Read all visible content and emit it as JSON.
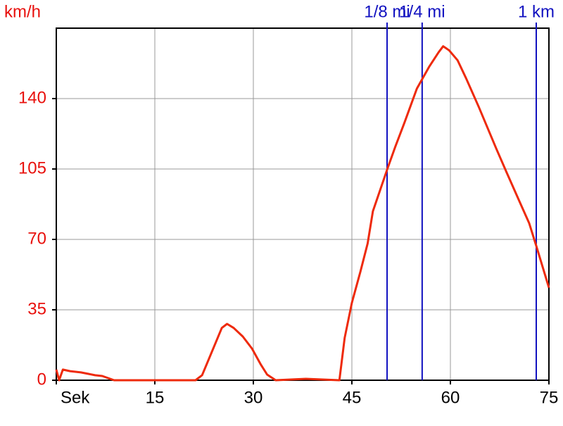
{
  "chart_data": {
    "type": "line",
    "y_label": "km/h",
    "x": [
      0,
      0.43,
      1,
      2.1,
      3.75,
      5.9,
      7,
      8.8,
      21.2,
      22.2,
      25.2,
      26,
      27,
      28.4,
      29.8,
      31.1,
      32.1,
      33.4,
      38,
      43.1,
      43.9,
      45,
      46.3,
      47.4,
      48.2,
      49.3,
      50.4,
      51.6,
      53,
      54.9,
      56.8,
      58.2,
      58.9,
      59.8,
      61.1,
      62.4,
      64.3,
      67,
      68.6,
      70.5,
      72,
      73.1,
      75
    ],
    "series": [
      {
        "color": "#ee2a0c",
        "values": [
          5.3,
          0,
          5.3,
          4.5,
          3.9,
          2.5,
          2.1,
          0,
          0,
          2.5,
          26,
          28,
          26,
          21.7,
          15.7,
          8,
          2.8,
          0,
          0.7,
          0,
          21,
          38.5,
          54,
          68,
          84,
          94.5,
          105,
          116,
          128,
          145,
          156,
          163,
          166,
          164,
          159,
          150,
          136,
          115,
          103,
          89,
          78,
          66.5,
          46
        ]
      }
    ],
    "xlim": [
      0,
      75
    ],
    "ylim": [
      0,
      175
    ],
    "xticks": [
      {
        "value": 0,
        "label": "Sek"
      },
      15,
      30,
      45,
      60,
      75
    ],
    "yticks": [
      0,
      35,
      70,
      105,
      140
    ],
    "grid": true,
    "markers": [
      {
        "label": "1/8 mi",
        "value": 50.36,
        "color": "#1010c0"
      },
      {
        "label": "1/4 mi",
        "value": 55.7,
        "color": "#1010c0"
      },
      {
        "label": "1 km",
        "value": 73.07,
        "color": "#1010c0"
      }
    ]
  }
}
